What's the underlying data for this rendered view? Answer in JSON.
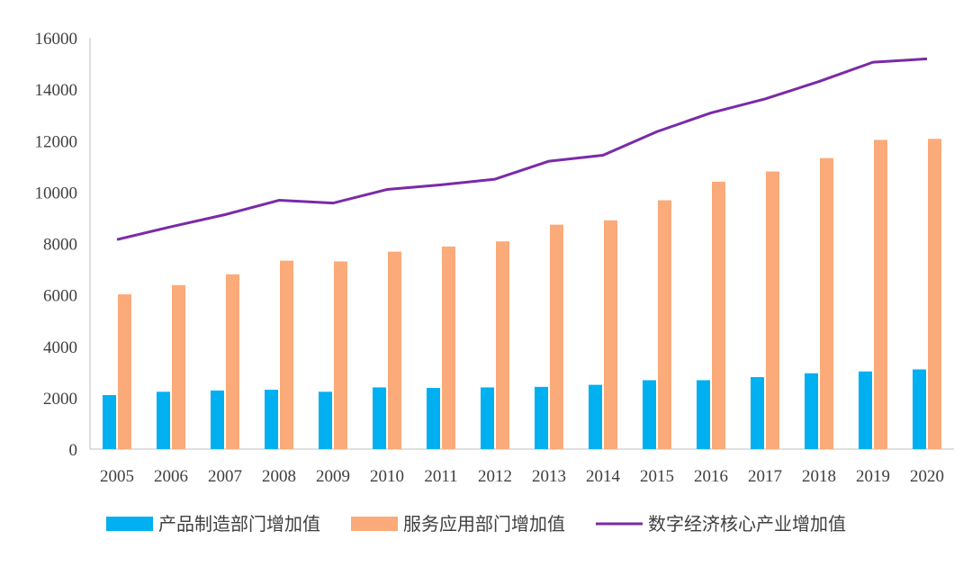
{
  "chart_data": {
    "type": "bar",
    "title": "",
    "xlabel": "",
    "ylabel": "",
    "ylim": [
      0,
      16000
    ],
    "yticks": [
      0,
      2000,
      4000,
      6000,
      8000,
      10000,
      12000,
      14000,
      16000
    ],
    "grid": false,
    "legend_position": "bottom",
    "categories": [
      "2005",
      "2006",
      "2007",
      "2008",
      "2009",
      "2010",
      "2011",
      "2012",
      "2013",
      "2014",
      "2015",
      "2016",
      "2017",
      "2018",
      "2019",
      "2020"
    ],
    "series": [
      {
        "name": "产品制造部门增加值",
        "kind": "bar",
        "color": "#00B0F0",
        "values": [
          2100,
          2230,
          2280,
          2310,
          2230,
          2400,
          2380,
          2400,
          2420,
          2500,
          2680,
          2680,
          2800,
          2950,
          3020,
          3100
        ]
      },
      {
        "name": "服务应用部门增加值",
        "kind": "bar",
        "color": "#FBAA7A",
        "values": [
          6020,
          6380,
          6800,
          7330,
          7300,
          7680,
          7880,
          8080,
          8730,
          8900,
          9680,
          10400,
          10800,
          11320,
          12030,
          12070
        ]
      },
      {
        "name": "数字经济核心产业增加值",
        "kind": "line",
        "color": "#7A2AA8",
        "values": [
          8150,
          8650,
          9120,
          9680,
          9570,
          10100,
          10280,
          10500,
          11200,
          11430,
          12350,
          13080,
          13620,
          14300,
          15050,
          15180
        ]
      }
    ]
  }
}
